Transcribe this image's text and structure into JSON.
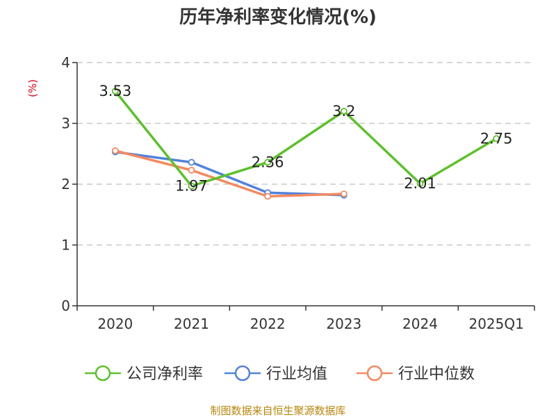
{
  "chart_data": {
    "type": "line",
    "title": "历年净利率变化情况(%)",
    "ylabel": "(%)",
    "ylim": [
      0,
      4
    ],
    "yticks": [
      0,
      1,
      2,
      3,
      4
    ],
    "categories": [
      "2020",
      "2021",
      "2022",
      "2023",
      "2024",
      "2025Q1"
    ],
    "grid": true,
    "legend_position": "bottom",
    "series": [
      {
        "name": "公司净利率",
        "color": "#5cc129",
        "values": [
          3.53,
          1.97,
          2.36,
          3.2,
          2.01,
          2.75
        ],
        "labels": [
          "3.53",
          "1.97",
          "2.36",
          "3.2",
          "2.01",
          "2.75"
        ]
      },
      {
        "name": "行业均值",
        "color": "#5082dd",
        "values": [
          2.53,
          2.36,
          1.86,
          1.82,
          null,
          null
        ]
      },
      {
        "name": "行业中位数",
        "color": "#f4895f",
        "values": [
          2.55,
          2.23,
          1.8,
          1.84,
          null,
          null
        ]
      }
    ],
    "source": "制图数据来自恒生聚源数据库"
  }
}
